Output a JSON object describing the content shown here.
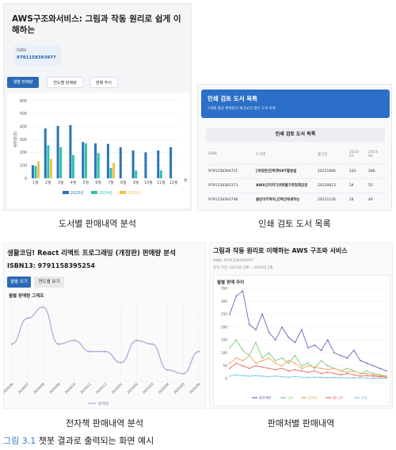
{
  "panel1": {
    "title": "AWS구조와서비스: 그림과 작동 원리로 쉽게 이해하는",
    "isbn_label": "ISBN",
    "isbn_value": "9791158393977",
    "tabs": [
      "월별 판매량",
      "연도별 판매량",
      "판매 추이"
    ],
    "caption": "도서별 판매내역 분석"
  },
  "panel2": {
    "header_title": "인쇄 검토 도서 목록",
    "header_sub": "3개월 평균 판매량이 재고보다 많은 도서 목록",
    "table_title": "인쇄 검토 도서 목록",
    "columns": [
      "ISBN",
      "도서명",
      "출간일",
      "2023-01",
      "2023-02"
    ],
    "rows": [
      [
        "9791158394721",
        "[개정판]진짜챗GPT활용법",
        "20231006",
        "242",
        "286"
      ],
      [
        "9791158393373",
        "AWS인터미디엇레벨구축및제공관",
        "20220613",
        "54",
        "55"
      ],
      [
        "9791158393748",
        "클린아키텍처,진짜안에세하는",
        "20211126",
        "24",
        "49"
      ]
    ],
    "caption": "인쇄 검토 도서 목록"
  },
  "panel3": {
    "title": "생활코딩! React 리액트 프로그래밍 (개정판) 판매량 분석",
    "isbn": "ISBN13: 9791158395254",
    "tabs": [
      "월별 보기",
      "연도별 보기"
    ],
    "subtitle": "월별 판매량 그래프",
    "caption": "전자책 판매내역 분석"
  },
  "panel4": {
    "title": "그림과 작동 원리로 이해하는 AWS 구조와 서비스",
    "meta1": "ISBN: 9791158393977",
    "meta2": "분석 기간: 2023년 2월 ~ 2025년 2월",
    "subtitle": "월별 판매 추이",
    "caption": "판매처별 판매내역"
  },
  "figure_caption": {
    "number": "그림 3.1",
    "text": "챗봇 결과로 출력되는 화면 예시"
  },
  "chart_data": [
    {
      "type": "bar",
      "categories": [
        "1월",
        "2월",
        "3월",
        "4월",
        "5월",
        "6월",
        "7월",
        "8월",
        "9월",
        "10월",
        "11월",
        "12월"
      ],
      "xlabel": "월",
      "ylabel": "판매량(권)",
      "ylim": [
        0,
        600
      ],
      "yticks": [
        0,
        100,
        200,
        300,
        400,
        500,
        600
      ],
      "legend_position": "bottom",
      "series": [
        {
          "name": "2023년",
          "color": "#2a74b8",
          "values": [
            100,
            385,
            405,
            410,
            280,
            270,
            265,
            240,
            215,
            200,
            215,
            240
          ]
        },
        {
          "name": "2024년",
          "color": "#2ec4a8",
          "values": [
            95,
            255,
            240,
            180,
            270,
            195,
            80,
            0,
            60,
            0,
            60,
            0
          ]
        },
        {
          "name": "2025년",
          "color": "#f2c14e",
          "values": [
            130,
            150,
            0,
            0,
            0,
            0,
            120,
            0,
            0,
            0,
            0,
            0
          ]
        }
      ]
    },
    {
      "type": "line",
      "x": [
        "2024/06",
        "2024/07",
        "2024/08",
        "2024/09",
        "2024/10",
        "2024/11",
        "2024/12",
        "2025/01",
        "2025/02",
        "2025/03",
        "2025/04",
        "2025/05",
        "2025/06"
      ],
      "values": [
        10,
        17,
        20,
        10,
        11,
        8,
        8,
        5,
        11,
        10,
        3,
        2,
        8
      ],
      "ylim": [
        0,
        21
      ],
      "series_color": "#a8afd8",
      "legend": "판매량",
      "legend_position": "bottom"
    },
    {
      "type": "line",
      "ylim": [
        0,
        350
      ],
      "yticks": [
        0,
        50,
        100,
        150,
        200,
        250,
        300,
        350
      ],
      "legend_position": "bottom",
      "series": [
        {
          "name": "총판매량",
          "color": "#6a68b8",
          "values": [
            250,
            320,
            340,
            210,
            190,
            250,
            180,
            150,
            200,
            160,
            140,
            190,
            120,
            130,
            110,
            150,
            100,
            90,
            80,
            110,
            70,
            60,
            50,
            40,
            30
          ]
        },
        {
          "name": "교보",
          "color": "#7acb7a",
          "values": [
            120,
            150,
            110,
            90,
            140,
            80,
            100,
            70,
            80,
            60,
            90,
            50,
            60,
            40,
            70,
            50,
            40,
            30,
            40,
            30,
            20,
            30,
            20,
            15,
            10
          ]
        },
        {
          "name": "알라딘",
          "color": "#f0a35a",
          "values": [
            60,
            80,
            70,
            90,
            60,
            70,
            80,
            60,
            50,
            70,
            60,
            40,
            50,
            45,
            40,
            35,
            40,
            30,
            25,
            30,
            20,
            20,
            15,
            10,
            10
          ]
        },
        {
          "name": "예스24",
          "color": "#e86a6a",
          "values": [
            40,
            60,
            50,
            40,
            50,
            45,
            40,
            35,
            40,
            30,
            35,
            30,
            25,
            30,
            20,
            25,
            20,
            15,
            20,
            15,
            10,
            12,
            10,
            8,
            5
          ]
        },
        {
          "name": "영풍",
          "color": "#7ec4e8",
          "values": [
            10,
            15,
            12,
            10,
            12,
            10,
            8,
            10,
            8,
            6,
            8,
            6,
            5,
            6,
            5,
            4,
            5,
            4,
            3,
            4,
            3,
            3,
            2,
            2,
            2
          ]
        }
      ]
    }
  ]
}
